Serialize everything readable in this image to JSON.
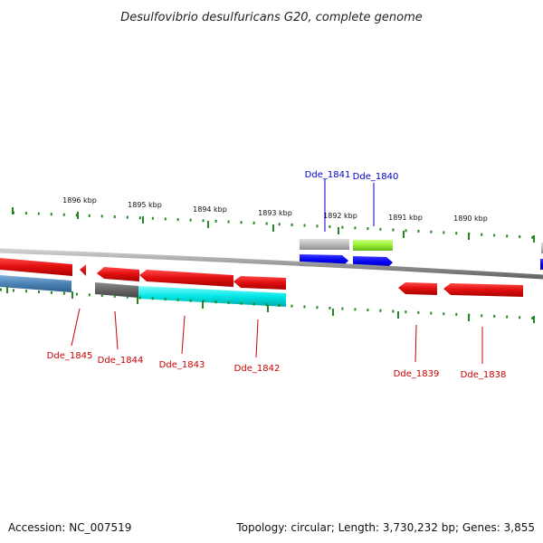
{
  "title": "Desulfovibrio desulfuricans G20, complete genome",
  "scale_labels": [
    "1896 kbp",
    "1895 kbp",
    "1894 kbp",
    "1893 kbp",
    "1892 kbp",
    "1891 kbp",
    "1890 kbp"
  ],
  "genes": [
    {
      "name": "Dde_1845",
      "strand": "reverse",
      "color": "#e01010"
    },
    {
      "name": "Dde_1844",
      "strand": "reverse",
      "color": "#e01010"
    },
    {
      "name": "Dde_1843",
      "strand": "reverse",
      "color": "#e01010"
    },
    {
      "name": "Dde_1842",
      "strand": "reverse",
      "color": "#e01010"
    },
    {
      "name": "Dde_1841",
      "strand": "forward",
      "color": "#0000cc"
    },
    {
      "name": "Dde_1840",
      "strand": "forward",
      "color": "#0000cc"
    },
    {
      "name": "Dde_1839",
      "strand": "reverse",
      "color": "#e01010"
    },
    {
      "name": "Dde_1838",
      "strand": "reverse",
      "color": "#e01010"
    }
  ],
  "colors": {
    "cds_reverse": "#ee1111",
    "cds_forward": "#0000ee",
    "steelblue_track": "#4a82b4",
    "dark_gray_track": "#666666",
    "cyan_track": "#00e6e6",
    "light_gray_track": "#bbbbbb",
    "lime_track": "#99ee33",
    "backbone": "#999999",
    "ticks": "#228822"
  },
  "footer": {
    "accession": "Accession: NC_007519",
    "summary": "Topology: circular; Length: 3,730,232 bp; Genes: 3,855"
  }
}
